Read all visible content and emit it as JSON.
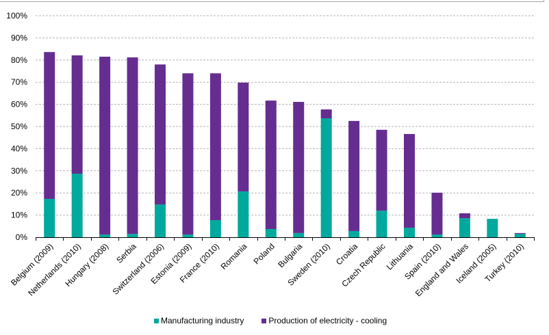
{
  "chart_data": {
    "type": "bar",
    "stacked": true,
    "title": "",
    "xlabel": "",
    "ylabel": "",
    "ylim": [
      0,
      100
    ],
    "y_ticks": [
      "0%",
      "10%",
      "20%",
      "30%",
      "40%",
      "50%",
      "60%",
      "70%",
      "80%",
      "90%",
      "100%"
    ],
    "grid": true,
    "legend_position": "bottom",
    "categories": [
      "Belgium (2009)",
      "Netherlands (2010)",
      "Hungary (2008)",
      "Serbia",
      "Switzerland (2006)",
      "Estonia (2009)",
      "France (2010)",
      "Romania",
      "Poland",
      "Bulgaria",
      "Sweden (2010)",
      "Croatia",
      "Czech Republic",
      "Lithuania",
      "Spain (2010)",
      "England and Wales",
      "Iceland (2005)",
      "Turkey (2010)"
    ],
    "series": [
      {
        "name": "Manufacturing industry",
        "color": "#00a99d",
        "values": [
          17.3,
          28.7,
          1.2,
          1.5,
          14.8,
          1.2,
          7.7,
          20.7,
          3.7,
          1.9,
          53.7,
          2.8,
          12.0,
          4.3,
          1.2,
          8.6,
          8.3,
          1.5
        ]
      },
      {
        "name": "Production of electricity - cooling",
        "color": "#662d91",
        "values": [
          66.3,
          53.4,
          80.3,
          79.7,
          63.2,
          72.8,
          66.3,
          49.1,
          58.0,
          59.2,
          4.0,
          49.7,
          36.5,
          42.3,
          18.9,
          2.2,
          0.0,
          0.4
        ]
      }
    ]
  }
}
